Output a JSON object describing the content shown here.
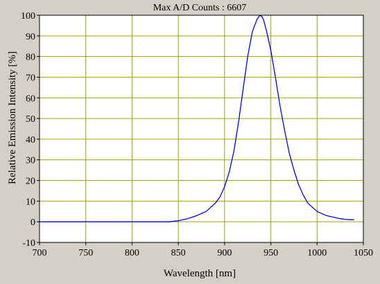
{
  "chart_data": {
    "type": "line",
    "title": "Max A/D Counts : 6607",
    "xlabel": "Wavelength [nm]",
    "ylabel": "Relative Emission Intensity [%]",
    "xlim": [
      700,
      1050
    ],
    "ylim": [
      -10,
      100
    ],
    "xticks": [
      700,
      750,
      800,
      850,
      900,
      950,
      1000,
      1050
    ],
    "yticks": [
      -10,
      0,
      10,
      20,
      30,
      40,
      50,
      60,
      70,
      80,
      90,
      100
    ],
    "grid": true,
    "colors": {
      "line": "#0000ee",
      "grid": "#a0a000",
      "plot_bg": "#ffffff",
      "frame_bg": "#d4d0c8"
    },
    "series": [
      {
        "x": [
          700,
          720,
          740,
          760,
          780,
          800,
          820,
          840,
          850,
          860,
          870,
          880,
          890,
          895,
          900,
          905,
          910,
          915,
          920,
          925,
          930,
          935,
          938,
          940,
          942,
          945,
          950,
          955,
          960,
          965,
          970,
          975,
          980,
          985,
          990,
          995,
          1000,
          1005,
          1010,
          1015,
          1020,
          1025,
          1030,
          1035,
          1040
        ],
        "y": [
          0,
          0,
          0,
          0,
          0,
          0,
          0,
          0,
          0.5,
          1.5,
          3,
          5,
          9,
          12,
          17,
          24,
          34,
          48,
          64,
          80,
          92,
          98,
          100,
          99.5,
          98,
          93,
          83,
          70,
          56,
          44,
          33,
          25,
          18,
          13,
          9,
          7,
          5,
          4,
          3,
          2.5,
          2,
          1.5,
          1.2,
          1,
          1
        ]
      }
    ]
  }
}
